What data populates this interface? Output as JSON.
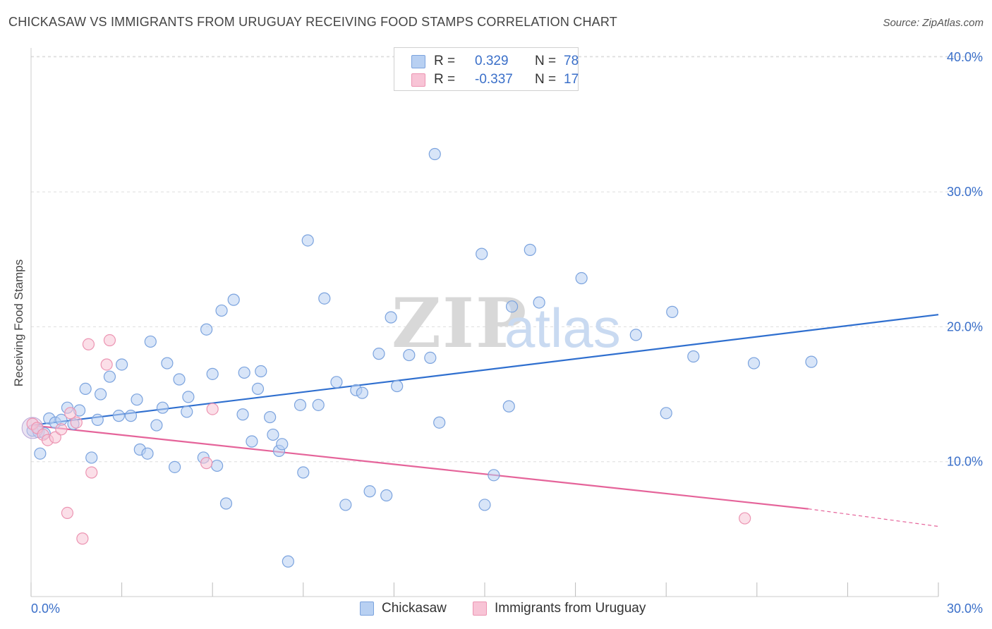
{
  "title": "CHICKASAW VS IMMIGRANTS FROM URUGUAY RECEIVING FOOD STAMPS CORRELATION CHART",
  "source": "Source: ZipAtlas.com",
  "watermark": {
    "zip": "ZIP",
    "atlas": "atlas"
  },
  "legend_top": {
    "rows": [
      {
        "r_label": "R =",
        "r_value": "0.329",
        "n_label": "N =",
        "n_value": "78"
      },
      {
        "r_label": "R =",
        "r_value": "-0.337",
        "n_label": "N =",
        "n_value": "17"
      }
    ]
  },
  "legend_bottom": {
    "items": [
      "Chickasaw",
      "Immigrants from Uruguay"
    ]
  },
  "colors": {
    "blue_fill": "#b8d0f2",
    "blue_stroke": "#7ba3de",
    "blue_line": "#2f6fcf",
    "pink_fill": "#f8c4d6",
    "pink_stroke": "#ec94b2",
    "pink_line": "#e5649a",
    "tick_text": "#3a6fc9",
    "grid": "#dddddd"
  },
  "chart_data": {
    "type": "scatter",
    "title": "CHICKASAW VS IMMIGRANTS FROM URUGUAY RECEIVING FOOD STAMPS CORRELATION CHART",
    "xlabel": "",
    "ylabel": "Receiving Food Stamps",
    "xlim": [
      0,
      30
    ],
    "ylim": [
      0,
      40
    ],
    "y_ticks": [
      {
        "value": 10,
        "label": "10.0%"
      },
      {
        "value": 20,
        "label": "20.0%"
      },
      {
        "value": 30,
        "label": "30.0%"
      },
      {
        "value": 40,
        "label": "40.0%"
      }
    ],
    "x_tick_labels": [
      {
        "value": 0,
        "label": "0.0%"
      },
      {
        "value": 30,
        "label": "30.0%"
      }
    ],
    "grid": "horizontal dashed",
    "legend_position": "top-center",
    "series": [
      {
        "name": "Chickasaw",
        "color": "blue",
        "r": 0.329,
        "n": 78,
        "trend": {
          "x0": 0,
          "y0": 12.7,
          "x1": 30,
          "y1": 20.9
        },
        "points": [
          [
            0.05,
            12.3
          ],
          [
            0.25,
            12.2
          ],
          [
            0.3,
            10.6
          ],
          [
            0.45,
            12.1
          ],
          [
            0.6,
            13.2
          ],
          [
            0.8,
            12.9
          ],
          [
            1.0,
            13.1
          ],
          [
            1.2,
            14.0
          ],
          [
            1.4,
            12.8
          ],
          [
            1.6,
            13.8
          ],
          [
            1.8,
            15.4
          ],
          [
            2.0,
            10.3
          ],
          [
            2.2,
            13.1
          ],
          [
            2.3,
            15.0
          ],
          [
            2.6,
            16.3
          ],
          [
            2.9,
            13.4
          ],
          [
            3.0,
            17.2
          ],
          [
            3.3,
            13.4
          ],
          [
            3.5,
            14.6
          ],
          [
            3.6,
            10.9
          ],
          [
            3.85,
            10.6
          ],
          [
            3.95,
            18.9
          ],
          [
            4.15,
            12.7
          ],
          [
            4.35,
            14.0
          ],
          [
            4.5,
            17.3
          ],
          [
            4.75,
            9.6
          ],
          [
            4.9,
            16.1
          ],
          [
            5.15,
            13.7
          ],
          [
            5.2,
            14.8
          ],
          [
            5.7,
            10.3
          ],
          [
            5.8,
            19.8
          ],
          [
            6.0,
            16.5
          ],
          [
            6.15,
            9.7
          ],
          [
            6.3,
            21.2
          ],
          [
            6.45,
            6.9
          ],
          [
            6.7,
            22.0
          ],
          [
            7.0,
            13.5
          ],
          [
            7.05,
            16.6
          ],
          [
            7.3,
            11.5
          ],
          [
            7.5,
            15.4
          ],
          [
            7.6,
            16.7
          ],
          [
            7.9,
            13.3
          ],
          [
            8.0,
            12.0
          ],
          [
            8.2,
            10.8
          ],
          [
            8.3,
            11.3
          ],
          [
            8.5,
            2.6
          ],
          [
            8.9,
            14.2
          ],
          [
            9.0,
            9.2
          ],
          [
            9.15,
            26.4
          ],
          [
            9.5,
            14.2
          ],
          [
            9.7,
            22.1
          ],
          [
            10.1,
            15.9
          ],
          [
            10.4,
            6.8
          ],
          [
            10.75,
            15.3
          ],
          [
            10.95,
            15.1
          ],
          [
            11.2,
            7.8
          ],
          [
            11.5,
            18.0
          ],
          [
            11.75,
            7.5
          ],
          [
            11.9,
            20.7
          ],
          [
            12.1,
            15.6
          ],
          [
            12.5,
            17.9
          ],
          [
            13.2,
            17.7
          ],
          [
            13.35,
            32.8
          ],
          [
            13.5,
            12.9
          ],
          [
            14.9,
            25.4
          ],
          [
            15.0,
            6.8
          ],
          [
            15.3,
            9.0
          ],
          [
            15.8,
            14.1
          ],
          [
            15.9,
            21.5
          ],
          [
            16.5,
            25.7
          ],
          [
            16.8,
            21.8
          ],
          [
            18.2,
            23.6
          ],
          [
            20.0,
            19.4
          ],
          [
            21.0,
            13.6
          ],
          [
            21.2,
            21.1
          ],
          [
            21.9,
            17.8
          ],
          [
            23.9,
            17.3
          ],
          [
            25.8,
            17.4
          ]
        ]
      },
      {
        "name": "Immigrants from Uruguay",
        "color": "pink",
        "r": -0.337,
        "n": 17,
        "trend": {
          "x0": 0,
          "y0": 12.7,
          "x1": 25.7,
          "y1": 6.5,
          "dash_x1": 30,
          "dash_y1": 5.2
        },
        "points": [
          [
            0.05,
            12.8
          ],
          [
            0.2,
            12.5
          ],
          [
            0.4,
            12.0
          ],
          [
            0.55,
            11.6
          ],
          [
            0.8,
            11.8
          ],
          [
            1.0,
            12.4
          ],
          [
            1.3,
            13.6
          ],
          [
            1.5,
            12.9
          ],
          [
            1.2,
            6.2
          ],
          [
            1.7,
            4.3
          ],
          [
            1.9,
            18.7
          ],
          [
            2.0,
            9.2
          ],
          [
            2.5,
            17.2
          ],
          [
            2.6,
            19.0
          ],
          [
            5.8,
            9.9
          ],
          [
            6.0,
            13.9
          ],
          [
            23.6,
            5.8
          ]
        ]
      }
    ]
  }
}
